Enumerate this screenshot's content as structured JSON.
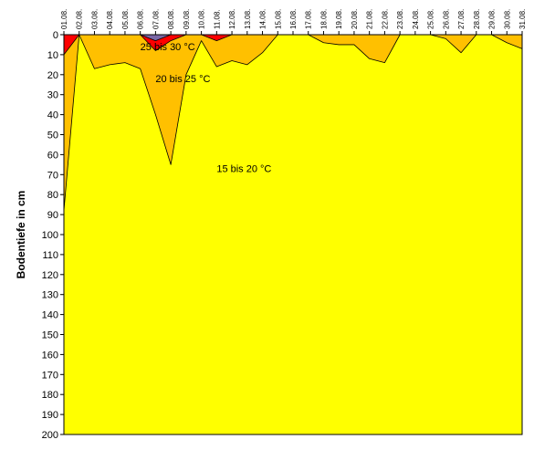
{
  "chart_data": {
    "type": "area",
    "title": "",
    "xlabel": "",
    "ylabel": "Bodentiefe in cm",
    "x_position": "top",
    "y_inverted": true,
    "ylim": [
      0,
      200
    ],
    "y_ticks": [
      0,
      10,
      20,
      30,
      40,
      50,
      60,
      70,
      80,
      90,
      100,
      110,
      120,
      130,
      140,
      150,
      160,
      170,
      180,
      190,
      200
    ],
    "categories": [
      "01.08.",
      "02.08.",
      "03.08.",
      "04.08.",
      "05.08.",
      "06.08.",
      "07.08.",
      "08.08.",
      "09.08.",
      "10.08.",
      "11.08.",
      "12.08.",
      "13.08.",
      "14.08.",
      "15.08.",
      "16.08.",
      "17.08.",
      "18.08.",
      "19.08.",
      "20.08.",
      "21.08.",
      "22.08.",
      "23.08.",
      "24.08.",
      "25.08.",
      "26.08.",
      "27.08.",
      "28.08.",
      "29.08.",
      "30.08.",
      "31.08."
    ],
    "series": [
      {
        "name": "15 bis 20 °C",
        "color": "#FFFF00",
        "values": [
          200,
          200,
          200,
          200,
          200,
          200,
          200,
          200,
          200,
          200,
          200,
          200,
          200,
          200,
          200,
          200,
          200,
          200,
          200,
          200,
          200,
          200,
          200,
          200,
          200,
          200,
          200,
          200,
          200,
          200,
          200
        ]
      },
      {
        "name": "20 bis 25 °C",
        "color": "#FFC000",
        "values": [
          88,
          0,
          17,
          15,
          14,
          17,
          40,
          65,
          20,
          3,
          16,
          13,
          15,
          9,
          0,
          0,
          0,
          4,
          5,
          5,
          12,
          14,
          0,
          0,
          0,
          2,
          9,
          0,
          0,
          4,
          7
        ]
      },
      {
        "name": "25 bis 30 °C",
        "color": "#FF0000",
        "values": [
          10,
          0,
          0,
          0,
          0,
          0,
          8,
          3,
          0,
          0,
          3,
          0,
          0,
          0,
          0,
          0,
          0,
          0,
          0,
          0,
          0,
          0,
          0,
          0,
          0,
          0,
          0,
          0,
          0,
          0,
          0
        ]
      },
      {
        "name": "",
        "color": "#7B68A6",
        "values": [
          0,
          0,
          0,
          0,
          0,
          0,
          3,
          0,
          0,
          0,
          0,
          0,
          0,
          0,
          0,
          0,
          0,
          0,
          0,
          0,
          0,
          0,
          0,
          0,
          0,
          0,
          0,
          0,
          0,
          0,
          0
        ]
      }
    ],
    "annotations": [
      {
        "text": "25 bis 30 °C",
        "x": "06.08.",
        "y": 6
      },
      {
        "text": "20 bis 25 °C",
        "x": "07.08.",
        "y": 22
      },
      {
        "text": "15 bis 20 °C",
        "x": "11.08.",
        "y": 67
      }
    ],
    "grid": false,
    "legend": "none"
  }
}
